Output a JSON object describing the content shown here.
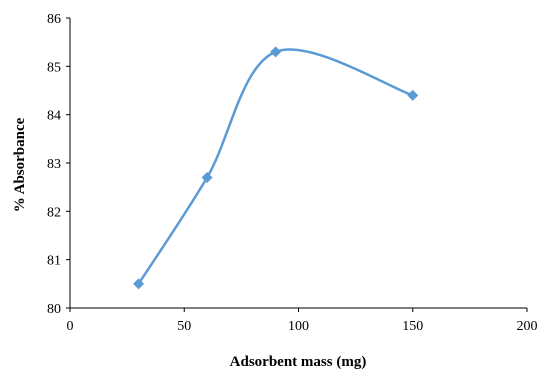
{
  "chart_data": {
    "type": "line",
    "title": "",
    "xlabel": "Adsorbent mass (mg)",
    "ylabel": "% Absorbance",
    "xlim": [
      0,
      200
    ],
    "ylim": [
      80,
      86
    ],
    "xticks": [
      "0",
      "50",
      "100",
      "150",
      "200"
    ],
    "yticks": [
      "80",
      "81",
      "82",
      "83",
      "84",
      "85",
      "86"
    ],
    "grid": false,
    "legend": "none",
    "smooth": true,
    "marker": "diamond",
    "series": [
      {
        "x": [
          30,
          60,
          90,
          150
        ],
        "values": [
          80.5,
          82.7,
          85.3,
          84.4
        ]
      }
    ]
  },
  "colors": {
    "series": "#5b9bd5",
    "axis": "#000000"
  }
}
